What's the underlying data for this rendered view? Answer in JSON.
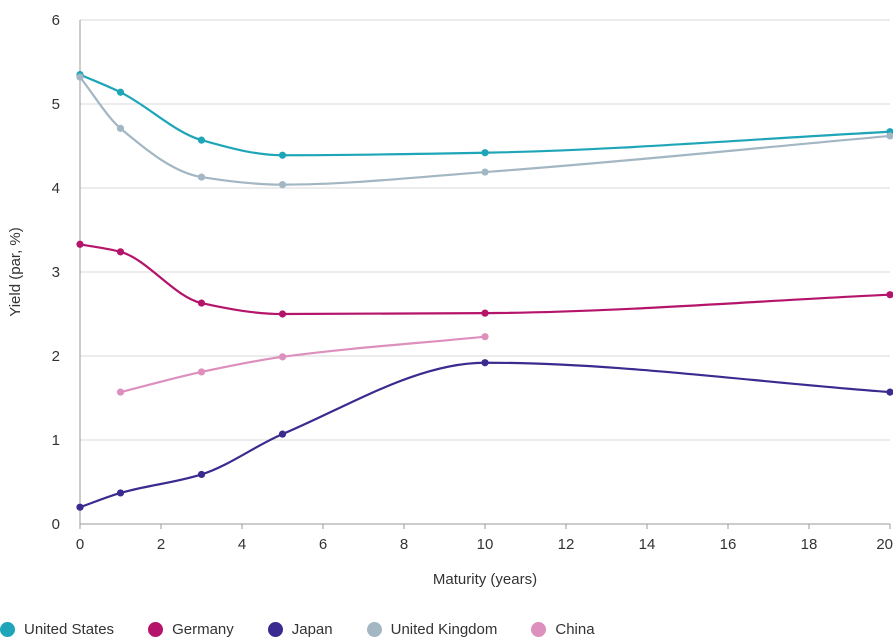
{
  "chart_data": {
    "type": "line",
    "xlabel": "Maturity (years)",
    "ylabel": "Yield (par, %)",
    "xlim": [
      0,
      20
    ],
    "ylim": [
      0,
      6
    ],
    "xticks": [
      "0",
      "2",
      "4",
      "6",
      "8",
      "10",
      "12",
      "14",
      "16",
      "18",
      "20"
    ],
    "yticks": [
      "0",
      "1",
      "2",
      "3",
      "4",
      "5",
      "6"
    ],
    "grid": "horizontal",
    "legend_position": "bottom",
    "series": [
      {
        "name": "United States",
        "color": "#1ea6b8",
        "x": [
          0,
          1,
          3,
          5,
          10,
          20
        ],
        "y": [
          5.35,
          5.14,
          4.57,
          4.39,
          4.42,
          4.67
        ]
      },
      {
        "name": "Germany",
        "color": "#b5146b",
        "x": [
          0,
          1,
          3,
          5,
          10,
          20
        ],
        "y": [
          3.33,
          3.24,
          2.63,
          2.5,
          2.51,
          2.73
        ]
      },
      {
        "name": "Japan",
        "color": "#3b2a8f",
        "x": [
          0,
          1,
          3,
          5,
          10,
          20
        ],
        "y": [
          0.2,
          0.37,
          0.59,
          1.07,
          1.92,
          1.57
        ]
      },
      {
        "name": "United Kingdom",
        "color": "#a2b6c3",
        "x": [
          0,
          1,
          3,
          5,
          10,
          20
        ],
        "y": [
          5.32,
          4.71,
          4.13,
          4.04,
          4.19,
          4.62
        ]
      },
      {
        "name": "China",
        "color": "#dd8fbe",
        "x": [
          1,
          3,
          5,
          10
        ],
        "y": [
          1.57,
          1.81,
          1.99,
          2.23
        ]
      }
    ]
  }
}
